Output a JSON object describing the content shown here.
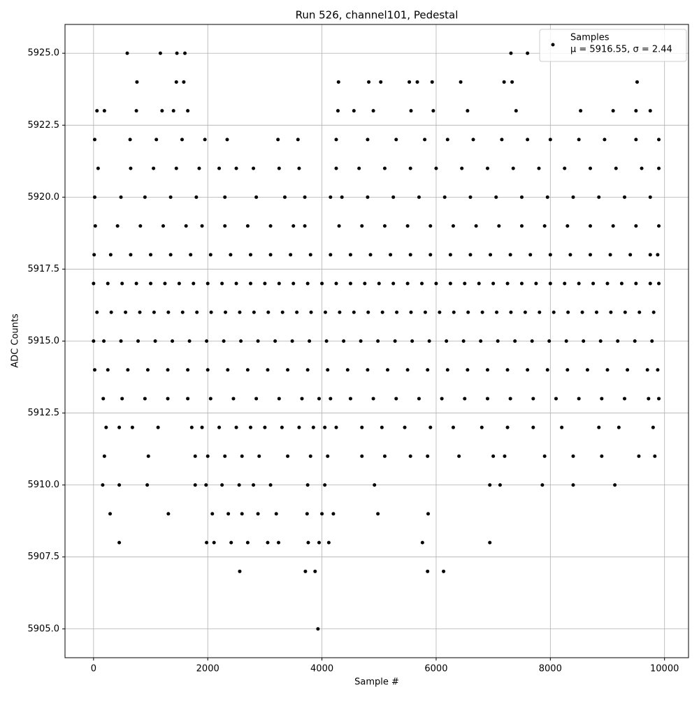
{
  "chart_data": {
    "type": "scatter",
    "title": "Run 526, channel101, Pedestal",
    "x_label": "Sample #",
    "y_label": "ADC Counts",
    "legend_note": "μ = 5916.55, σ = 2.44",
    "legend_position": "upper right",
    "grid": true,
    "xlim": [
      -500,
      10420
    ],
    "ylim": [
      5904,
      5926
    ],
    "xticks": [
      0,
      2000,
      4000,
      6000,
      8000,
      10000
    ],
    "yticks": [
      {
        "value": 5905,
        "label": "5905.0"
      },
      {
        "value": 5907.5,
        "label": "5907.5"
      },
      {
        "value": 5910,
        "label": "5910.0"
      },
      {
        "value": 5912.5,
        "label": "5912.5"
      },
      {
        "value": 5915,
        "label": "5915.0"
      },
      {
        "value": 5917.5,
        "label": "5917.5"
      },
      {
        "value": 5920,
        "label": "5920.0"
      },
      {
        "value": 5922.5,
        "label": "5922.5"
      },
      {
        "value": 5925,
        "label": "5925.0"
      }
    ],
    "x": [
      0,
      250,
      500,
      750,
      1000,
      1250,
      1500,
      1750,
      2000,
      2250,
      2500,
      2750,
      3000,
      3250,
      3500,
      3750,
      4000,
      4250,
      4500,
      4750,
      5000,
      5250,
      5500,
      5750,
      6000,
      6250,
      6500,
      6750,
      7000,
      7250,
      7500,
      7750,
      8000,
      8250,
      8500,
      8750,
      9000,
      9250,
      9500,
      9750,
      9900,
      60,
      310,
      560,
      810,
      1060,
      1310,
      1560,
      1810,
      2060,
      2310,
      2560,
      2810,
      3060,
      3310,
      3560,
      3810,
      4060,
      4310,
      4560,
      4810,
      5060,
      5310,
      5560,
      5810,
      6060,
      6310,
      6560,
      6810,
      7060,
      7310,
      7560,
      7810,
      8060,
      8310,
      8560,
      8810,
      9060,
      9310,
      9560,
      9810,
      0,
      180,
      480,
      780,
      1080,
      1380,
      1680,
      1980,
      2280,
      2580,
      2880,
      3180,
      3480,
      3780,
      4080,
      4380,
      4680,
      4980,
      5280,
      5580,
      5880,
      6180,
      6480,
      6780,
      7080,
      7380,
      7680,
      7980,
      8280,
      8580,
      8880,
      9180,
      9480,
      9780,
      20,
      250,
      600,
      950,
      1300,
      1650,
      2000,
      2350,
      2700,
      3050,
      3400,
      3750,
      4100,
      4450,
      4800,
      5150,
      5500,
      5850,
      6200,
      6550,
      6900,
      7250,
      7600,
      7950,
      8300,
      8650,
      9000,
      9350,
      9700,
      9880,
      10,
      300,
      650,
      1000,
      1350,
      1700,
      2050,
      2400,
      2750,
      3100,
      3450,
      3800,
      4150,
      4500,
      4850,
      5200,
      5550,
      5900,
      6250,
      6600,
      6950,
      7300,
      7650,
      8000,
      8350,
      8700,
      9050,
      9400,
      9750,
      9880,
      30,
      420,
      820,
      1220,
      1620,
      1900,
      2300,
      2700,
      3100,
      3500,
      3700,
      4300,
      4700,
      5100,
      5500,
      5900,
      6300,
      6700,
      7100,
      7500,
      7900,
      8300,
      8700,
      9100,
      9500,
      9900,
      170,
      500,
      900,
      1300,
      1650,
      2050,
      2450,
      2850,
      3250,
      3650,
      3950,
      4150,
      4500,
      4900,
      5300,
      5700,
      6100,
      6500,
      6900,
      7300,
      7700,
      8100,
      8500,
      8900,
      9300,
      9720,
      9900,
      20,
      480,
      900,
      1350,
      1800,
      2300,
      2850,
      3350,
      3700,
      4150,
      4350,
      4800,
      5250,
      5700,
      6150,
      6600,
      7050,
      7500,
      7950,
      8400,
      8850,
      9300,
      9750,
      80,
      650,
      1050,
      1450,
      1850,
      2200,
      2500,
      2800,
      3250,
      3600,
      4250,
      4650,
      5100,
      5550,
      6000,
      6450,
      6900,
      7350,
      7800,
      8250,
      8700,
      9150,
      9600,
      9900,
      20,
      640,
      1100,
      1550,
      1950,
      2340,
      3230,
      3580,
      4250,
      4800,
      5300,
      5800,
      6200,
      6650,
      7150,
      7600,
      8000,
      8500,
      8950,
      9500,
      9900,
      220,
      450,
      680,
      1130,
      1720,
      1900,
      2200,
      2500,
      2750,
      3000,
      3300,
      3600,
      3850,
      4050,
      4250,
      4700,
      5050,
      5450,
      5900,
      6300,
      6800,
      7250,
      7700,
      8200,
      8850,
      9200,
      9800,
      190,
      960,
      1780,
      2000,
      2300,
      2600,
      2900,
      3400,
      3800,
      4100,
      4700,
      5100,
      5550,
      5850,
      6400,
      7000,
      7200,
      7900,
      8400,
      8900,
      9550,
      9830,
      160,
      450,
      940,
      1780,
      1970,
      2250,
      2550,
      2800,
      3100,
      3750,
      4050,
      4920,
      6940,
      7120,
      7860,
      8400,
      9130,
      290,
      1310,
      2080,
      2360,
      2600,
      2880,
      3200,
      3740,
      4000,
      4200,
      4980,
      5860,
      450,
      1980,
      2110,
      2410,
      2700,
      3050,
      3240,
      3760,
      3950,
      4120,
      5760,
      6940,
      2560,
      3710,
      3880,
      5850,
      6130,
      3930,
      60,
      190,
      750,
      1200,
      1400,
      1650,
      4280,
      4560,
      4900,
      5560,
      5950,
      6550,
      7400,
      8530,
      9100,
      9500,
      9750,
      760,
      1450,
      1580,
      4290,
      4820,
      5030,
      5530,
      5670,
      5930,
      6430,
      7190,
      7330,
      9520,
      590,
      1170,
      1460,
      1600,
      7310,
      7600
    ],
    "series": [
      {
        "name": "Samples",
        "color": "#000000",
        "values": [
          5917,
          5917,
          5917,
          5917,
          5917,
          5917,
          5917,
          5917,
          5917,
          5917,
          5917,
          5917,
          5917,
          5917,
          5917,
          5917,
          5917,
          5917,
          5917,
          5917,
          5917,
          5917,
          5917,
          5917,
          5917,
          5917,
          5917,
          5917,
          5917,
          5917,
          5917,
          5917,
          5917,
          5917,
          5917,
          5917,
          5917,
          5917,
          5917,
          5917,
          5917,
          5916,
          5916,
          5916,
          5916,
          5916,
          5916,
          5916,
          5916,
          5916,
          5916,
          5916,
          5916,
          5916,
          5916,
          5916,
          5916,
          5916,
          5916,
          5916,
          5916,
          5916,
          5916,
          5916,
          5916,
          5916,
          5916,
          5916,
          5916,
          5916,
          5916,
          5916,
          5916,
          5916,
          5916,
          5916,
          5916,
          5916,
          5916,
          5916,
          5916,
          5915,
          5915,
          5915,
          5915,
          5915,
          5915,
          5915,
          5915,
          5915,
          5915,
          5915,
          5915,
          5915,
          5915,
          5915,
          5915,
          5915,
          5915,
          5915,
          5915,
          5915,
          5915,
          5915,
          5915,
          5915,
          5915,
          5915,
          5915,
          5915,
          5915,
          5915,
          5915,
          5915,
          5915,
          5914,
          5914,
          5914,
          5914,
          5914,
          5914,
          5914,
          5914,
          5914,
          5914,
          5914,
          5914,
          5914,
          5914,
          5914,
          5914,
          5914,
          5914,
          5914,
          5914,
          5914,
          5914,
          5914,
          5914,
          5914,
          5914,
          5914,
          5914,
          5914,
          5914,
          5918,
          5918,
          5918,
          5918,
          5918,
          5918,
          5918,
          5918,
          5918,
          5918,
          5918,
          5918,
          5918,
          5918,
          5918,
          5918,
          5918,
          5918,
          5918,
          5918,
          5918,
          5918,
          5918,
          5918,
          5918,
          5918,
          5918,
          5918,
          5918,
          5918,
          5919,
          5919,
          5919,
          5919,
          5919,
          5919,
          5919,
          5919,
          5919,
          5919,
          5919,
          5919,
          5919,
          5919,
          5919,
          5919,
          5919,
          5919,
          5919,
          5919,
          5919,
          5919,
          5919,
          5919,
          5919,
          5919,
          5913,
          5913,
          5913,
          5913,
          5913,
          5913,
          5913,
          5913,
          5913,
          5913,
          5913,
          5913,
          5913,
          5913,
          5913,
          5913,
          5913,
          5913,
          5913,
          5913,
          5913,
          5913,
          5913,
          5913,
          5913,
          5913,
          5913,
          5920,
          5920,
          5920,
          5920,
          5920,
          5920,
          5920,
          5920,
          5920,
          5920,
          5920,
          5920,
          5920,
          5920,
          5920,
          5920,
          5920,
          5920,
          5920,
          5920,
          5920,
          5920,
          5920,
          5921,
          5921,
          5921,
          5921,
          5921,
          5921,
          5921,
          5921,
          5921,
          5921,
          5921,
          5921,
          5921,
          5921,
          5921,
          5921,
          5921,
          5921,
          5921,
          5921,
          5921,
          5921,
          5921,
          5921,
          5922,
          5922,
          5922,
          5922,
          5922,
          5922,
          5922,
          5922,
          5922,
          5922,
          5922,
          5922,
          5922,
          5922,
          5922,
          5922,
          5922,
          5922,
          5922,
          5922,
          5922,
          5912,
          5912,
          5912,
          5912,
          5912,
          5912,
          5912,
          5912,
          5912,
          5912,
          5912,
          5912,
          5912,
          5912,
          5912,
          5912,
          5912,
          5912,
          5912,
          5912,
          5912,
          5912,
          5912,
          5912,
          5912,
          5912,
          5912,
          5911,
          5911,
          5911,
          5911,
          5911,
          5911,
          5911,
          5911,
          5911,
          5911,
          5911,
          5911,
          5911,
          5911,
          5911,
          5911,
          5911,
          5911,
          5911,
          5911,
          5911,
          5911,
          5910,
          5910,
          5910,
          5910,
          5910,
          5910,
          5910,
          5910,
          5910,
          5910,
          5910,
          5910,
          5910,
          5910,
          5910,
          5910,
          5910,
          5909,
          5909,
          5909,
          5909,
          5909,
          5909,
          5909,
          5909,
          5909,
          5909,
          5909,
          5909,
          5908,
          5908,
          5908,
          5908,
          5908,
          5908,
          5908,
          5908,
          5908,
          5908,
          5908,
          5908,
          5907,
          5907,
          5907,
          5907,
          5907,
          5905,
          5923,
          5923,
          5923,
          5923,
          5923,
          5923,
          5923,
          5923,
          5923,
          5923,
          5923,
          5923,
          5923,
          5923,
          5923,
          5923,
          5923,
          5924,
          5924,
          5924,
          5924,
          5924,
          5924,
          5924,
          5924,
          5924,
          5924,
          5924,
          5924,
          5924,
          5925,
          5925,
          5925,
          5925,
          5925,
          5925
        ]
      }
    ]
  }
}
